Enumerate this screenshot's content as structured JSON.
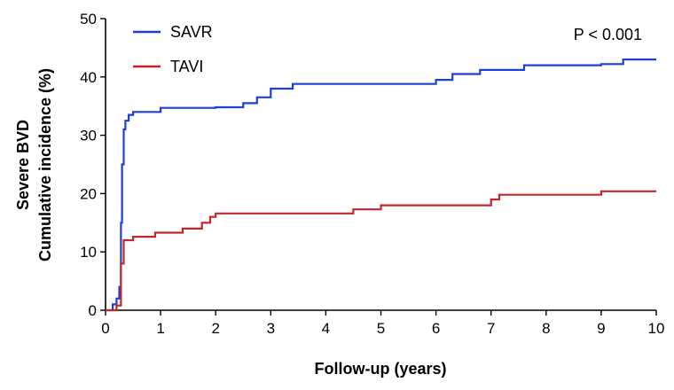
{
  "chart_data": {
    "type": "line",
    "step": true,
    "xlabel": "Follow-up (years)",
    "ylabel": [
      "Severe BVD",
      "Cumulative incidence (%)"
    ],
    "xlim": [
      0,
      10
    ],
    "ylim": [
      0,
      50
    ],
    "xticks": [
      0,
      1,
      2,
      3,
      4,
      5,
      6,
      7,
      8,
      9,
      10
    ],
    "yticks": [
      0,
      10,
      20,
      30,
      40,
      50
    ],
    "grid": false,
    "legend_position": "top-left",
    "annotation": "P < 0.001",
    "series": [
      {
        "name": "SAVR",
        "color": "#1f3fd9",
        "x": [
          0,
          0.13,
          0.2,
          0.25,
          0.28,
          0.3,
          0.33,
          0.36,
          0.42,
          0.5,
          0.68,
          1.0,
          1.5,
          2.0,
          2.5,
          2.75,
          3.0,
          3.4,
          4.0,
          5.0,
          6.0,
          6.3,
          6.8,
          7.6,
          8.0,
          9.0,
          9.4,
          10.0
        ],
        "y": [
          0,
          1,
          2,
          4,
          15,
          25,
          31,
          32.5,
          33.5,
          34,
          34,
          34.7,
          34.7,
          34.8,
          35.5,
          36.5,
          38,
          38.8,
          38.8,
          38.8,
          39.5,
          40.5,
          41.2,
          42,
          42,
          42.2,
          43,
          43
        ]
      },
      {
        "name": "TAVI",
        "color": "#c0282d",
        "x": [
          0,
          0.2,
          0.28,
          0.33,
          0.5,
          0.9,
          1.4,
          1.75,
          1.9,
          2.0,
          2.5,
          3.0,
          4.5,
          5.0,
          6.0,
          7.0,
          7.15,
          8.0,
          9.0,
          10.0
        ],
        "y": [
          0,
          0.8,
          8,
          12,
          12.6,
          13.3,
          14,
          15,
          16,
          16.6,
          16.6,
          16.6,
          17.3,
          18,
          18,
          19,
          19.8,
          19.8,
          20.4,
          20.4
        ]
      }
    ]
  }
}
